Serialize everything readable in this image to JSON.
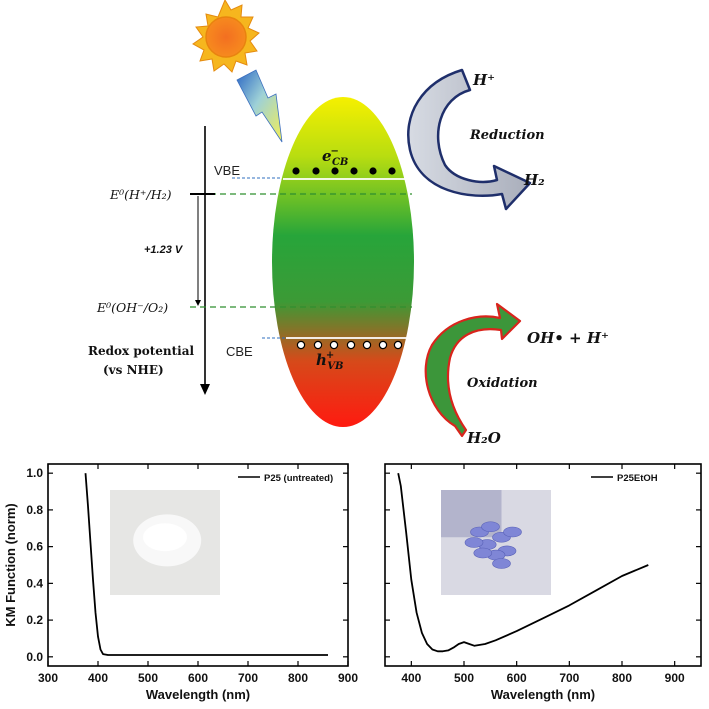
{
  "scheme": {
    "vbe_label": "VBE",
    "cbe_label": "CBE",
    "e_cb": {
      "base": "e",
      "sup": "−",
      "sub": "CB"
    },
    "h_vb": {
      "base": "h",
      "sup": "+",
      "sub": "VB"
    },
    "e0_h_h2": "E⁰(H⁺/H₂)",
    "e0_oh_o2": "E⁰(OH⁻/O₂)",
    "gap_label": "+1.23 V",
    "redox_axis_line1": "Redox potential",
    "redox_axis_line2": "(vs NHE)",
    "reduction": {
      "label": "Reduction",
      "reactant": "H⁺",
      "product": "H₂"
    },
    "oxidation": {
      "label": "Oxidation",
      "reactant": "H₂O",
      "product": "OH• + H⁺"
    },
    "colors": {
      "sun": "#f7a21b",
      "sun_core": "#f36f21",
      "bolt": "#e9e46a",
      "bolt_edge": "#2e6ec7",
      "reduction_arrow_fill": "#c8ccd6",
      "reduction_arrow_edge": "#1f2f6b",
      "oxidation_arrow_fill": "#3b9a3b",
      "oxidation_arrow_edge": "#d9241c",
      "ellipse_top": "#f4f000",
      "ellipse_mid": "#27a53a",
      "ellipse_bottom": "#ff1a10",
      "vbe_line": "#2f6fbf",
      "dashed_line": "#2f8f2f"
    }
  },
  "chart_data": [
    {
      "type": "line",
      "title": "",
      "ylabel": "KM Function (norm)",
      "xlabel": "Wavelength (nm)",
      "xlim": [
        300,
        900
      ],
      "ylim": [
        -0.05,
        1.05
      ],
      "x_ticks": [
        300,
        400,
        500,
        600,
        700,
        800,
        900
      ],
      "y_ticks": [
        0.0,
        0.2,
        0.4,
        0.6,
        0.8,
        1.0
      ],
      "y_tick_labels": [
        "0.0",
        "0.2",
        "0.4",
        "0.6",
        "0.8",
        "1.0"
      ],
      "legend": "top-right",
      "inset_image": "white powder sample",
      "series": [
        {
          "name": "P25 (untreated)",
          "x": [
            375,
            380,
            385,
            390,
            395,
            400,
            405,
            410,
            420,
            440,
            480,
            550,
            650,
            750,
            860
          ],
          "y": [
            1.0,
            0.82,
            0.62,
            0.42,
            0.24,
            0.11,
            0.04,
            0.015,
            0.01,
            0.01,
            0.01,
            0.01,
            0.01,
            0.01,
            0.01
          ]
        }
      ]
    },
    {
      "type": "line",
      "title": "",
      "ylabel": "",
      "xlabel": "Wavelength (nm)",
      "xlim": [
        350,
        950
      ],
      "ylim": [
        -0.05,
        1.05
      ],
      "x_ticks": [
        400,
        500,
        600,
        700,
        800,
        900
      ],
      "legend": "top-right",
      "inset_image": "blue powder sample",
      "series": [
        {
          "name": "P25EtOH",
          "x": [
            375,
            380,
            390,
            400,
            410,
            420,
            430,
            440,
            450,
            460,
            470,
            480,
            490,
            500,
            510,
            520,
            540,
            560,
            600,
            650,
            700,
            750,
            800,
            850
          ],
          "y": [
            1.0,
            0.93,
            0.68,
            0.42,
            0.24,
            0.13,
            0.07,
            0.04,
            0.03,
            0.03,
            0.035,
            0.05,
            0.07,
            0.08,
            0.07,
            0.06,
            0.07,
            0.09,
            0.14,
            0.21,
            0.28,
            0.36,
            0.44,
            0.5
          ]
        }
      ]
    }
  ]
}
